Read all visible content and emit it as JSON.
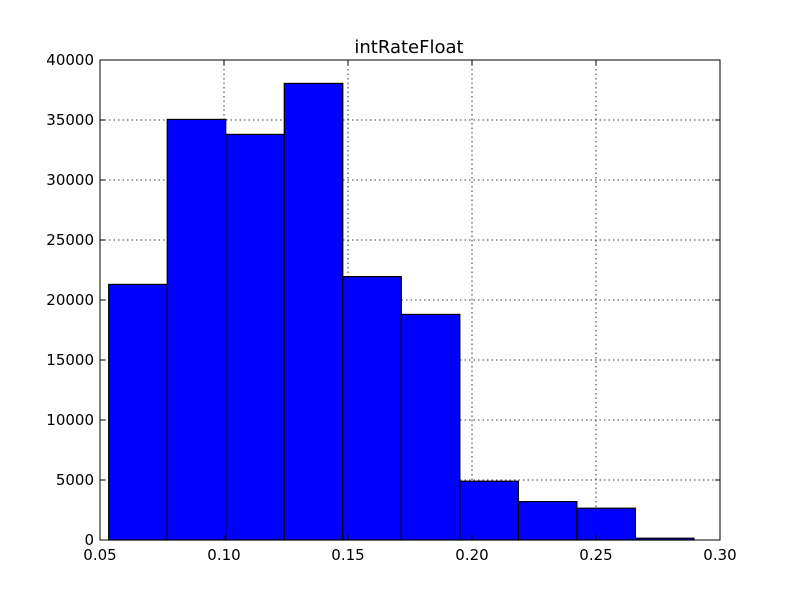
{
  "chart_data": {
    "type": "bar",
    "title": "intRateFloat",
    "xlabel": "",
    "ylabel": "",
    "xlim": [
      0.05,
      0.3
    ],
    "ylim": [
      0,
      40000
    ],
    "x_ticks": [
      "0.05",
      "0.10",
      "0.15",
      "0.20",
      "0.25",
      "0.30"
    ],
    "y_ticks": [
      "0",
      "5000",
      "10000",
      "15000",
      "20000",
      "25000",
      "30000",
      "35000",
      "40000"
    ],
    "grid": true,
    "bins": [
      {
        "start": 0.0535,
        "end": 0.0771,
        "value": 21300
      },
      {
        "start": 0.0771,
        "end": 0.1007,
        "value": 35050
      },
      {
        "start": 0.1007,
        "end": 0.1243,
        "value": 33800
      },
      {
        "start": 0.1243,
        "end": 0.1479,
        "value": 38050
      },
      {
        "start": 0.1479,
        "end": 0.1715,
        "value": 21950
      },
      {
        "start": 0.1715,
        "end": 0.1951,
        "value": 18800
      },
      {
        "start": 0.1951,
        "end": 0.2187,
        "value": 4900
      },
      {
        "start": 0.2187,
        "end": 0.2423,
        "value": 3200
      },
      {
        "start": 0.2423,
        "end": 0.2659,
        "value": 2650
      },
      {
        "start": 0.2659,
        "end": 0.2895,
        "value": 150
      }
    ],
    "colors": {
      "bar_fill": "#0000ff",
      "bar_edge": "#000000",
      "grid": "#000000"
    }
  }
}
